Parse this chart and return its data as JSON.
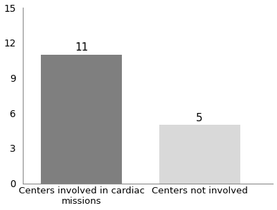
{
  "categories": [
    "Centers involved in cardiac\nmissions",
    "Centers not involved"
  ],
  "values": [
    11,
    5
  ],
  "bar_colors": [
    "#7f7f7f",
    "#d9d9d9"
  ],
  "bar_labels": [
    "11",
    "5"
  ],
  "ylim": [
    0,
    15
  ],
  "yticks": [
    0,
    3,
    6,
    9,
    12,
    15
  ],
  "bar_width": 0.55,
  "bar_positions": [
    0.3,
    1.1
  ],
  "xlim": [
    -0.1,
    1.6
  ],
  "background_color": "#ffffff",
  "label_fontsize": 9.5,
  "tick_fontsize": 10,
  "annotation_fontsize": 11
}
